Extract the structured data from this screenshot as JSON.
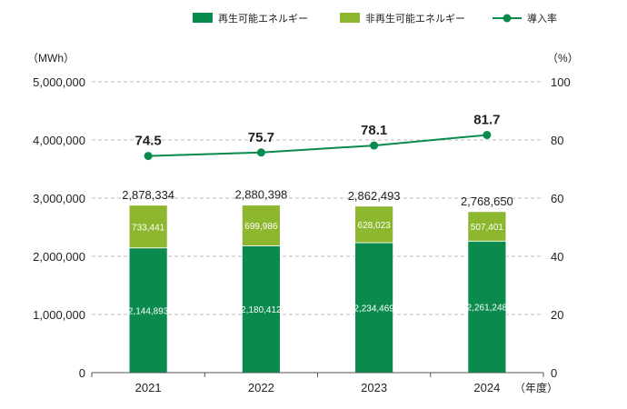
{
  "chart_data": {
    "type": "bar",
    "categories": [
      "2021",
      "2022",
      "2023",
      "2024"
    ],
    "series": [
      {
        "name": "再生可能エネルギー",
        "values": [
          2144893,
          2180412,
          2234469,
          2261248
        ],
        "color": "#0a8a4c",
        "labels": [
          "2,144,893",
          "2,180,412",
          "2,234,469",
          "2,261,248"
        ]
      },
      {
        "name": "非再生可能エネルギー",
        "values": [
          733441,
          699986,
          628023,
          507401
        ],
        "color": "#8db72e",
        "labels": [
          "733,441",
          "699,986",
          "628,023",
          "507,401"
        ]
      }
    ],
    "totals": [
      2878334,
      2880398,
      2862493,
      2768650
    ],
    "total_labels": [
      "2,878,334",
      "2,880,398",
      "2,862,493",
      "2,768,650"
    ],
    "line_series": {
      "name": "導入率",
      "values": [
        74.5,
        75.7,
        78.1,
        81.7
      ],
      "labels": [
        "74.5",
        "75.7",
        "78.1",
        "81.7"
      ],
      "color": "#0a8a4c",
      "axis": "right"
    },
    "ylim": [
      0,
      5000000
    ],
    "y_ticks": [
      0,
      1000000,
      2000000,
      3000000,
      4000000,
      5000000
    ],
    "y_tick_labels": [
      "0",
      "1,000,000",
      "2,000,000",
      "3,000,000",
      "4,000,000",
      "5,000,000"
    ],
    "y2lim": [
      0,
      100
    ],
    "y2_ticks": [
      0,
      20,
      40,
      60,
      80,
      100
    ],
    "y2_tick_labels": [
      "0",
      "20",
      "40",
      "60",
      "80",
      "100"
    ],
    "ylabel": "（MWh）",
    "y2label": "（%）",
    "xlabel": "（年度）",
    "grid": true,
    "legend_position": "top-right"
  }
}
